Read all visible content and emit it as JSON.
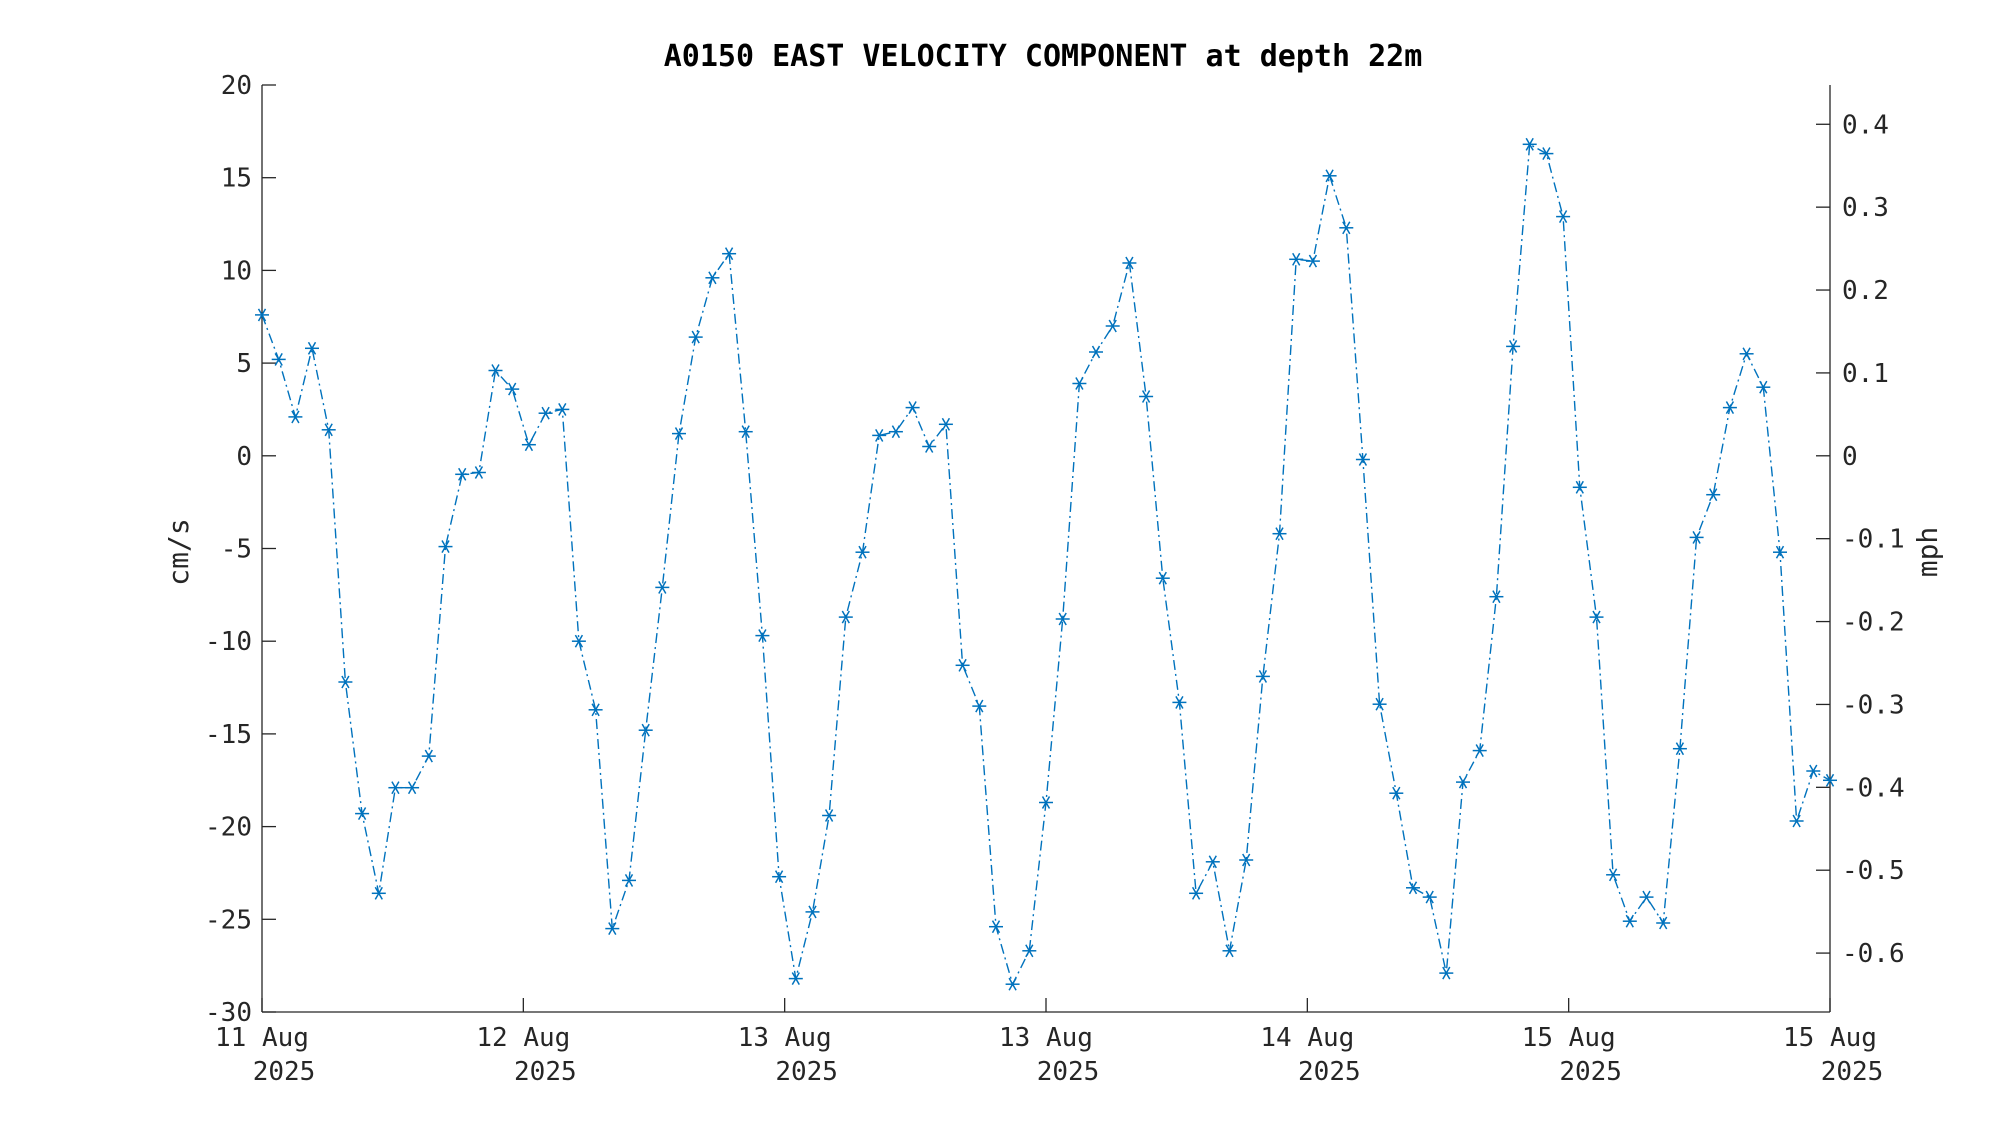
{
  "chart_data": {
    "type": "line",
    "title": "A0150 EAST VELOCITY COMPONENT at depth 22m",
    "ylabel": "cm/s",
    "ylabel_right": "mph",
    "ylim": [
      -30,
      20
    ],
    "y_ticks": [
      20,
      15,
      10,
      5,
      0,
      -5,
      -10,
      -15,
      -20,
      -25,
      -30
    ],
    "y_right_ticks": [
      0.4,
      0.3,
      0.2,
      0.1,
      0,
      -0.1,
      -0.2,
      -0.3,
      -0.4,
      -0.5,
      -0.6
    ],
    "x_tick_labels": [
      {
        "day": "11 Aug",
        "year": "2025"
      },
      {
        "day": "12 Aug",
        "year": "2025"
      },
      {
        "day": "13 Aug",
        "year": "2025"
      },
      {
        "day": "13 Aug",
        "year": "2025"
      },
      {
        "day": "14 Aug",
        "year": "2025"
      },
      {
        "day": "15 Aug",
        "year": "2025"
      },
      {
        "day": "15 Aug",
        "year": "2025"
      }
    ],
    "grid": false,
    "line_style": "dash-dot",
    "marker": "asterisk",
    "color": "#0072BD",
    "series": [
      {
        "values": [
          7.6,
          5.2,
          2.1,
          5.8,
          1.4,
          -12.2,
          -19.3,
          -23.6,
          -17.9,
          -17.9,
          -16.2,
          -4.9,
          -1.0,
          -0.9,
          4.6,
          3.6,
          0.6,
          2.3,
          2.5,
          -10.0,
          -13.7,
          -25.5,
          -22.9,
          -14.8,
          -7.1,
          1.2,
          6.4,
          9.6,
          10.9,
          1.3,
          -9.7,
          -22.7,
          -28.2,
          -24.6,
          -19.4,
          -8.7,
          -5.2,
          1.1,
          1.3,
          2.6,
          0.5,
          1.7,
          -11.3,
          -13.5,
          -25.4,
          -28.5,
          -26.7,
          -18.7,
          -8.8,
          3.9,
          5.6,
          7.0,
          10.4,
          3.2,
          -6.6,
          -13.3,
          -23.6,
          -21.9,
          -26.7,
          -21.8,
          -11.9,
          -4.2,
          10.6,
          10.5,
          15.1,
          12.3,
          -0.2,
          -13.4,
          -18.2,
          -23.3,
          -23.8,
          -27.9,
          -17.6,
          -15.9,
          -7.6,
          5.9,
          16.8,
          16.3,
          12.9,
          -1.7,
          -8.7,
          -22.6,
          -25.1,
          -23.8,
          -25.2,
          -15.8,
          -4.4,
          -2.1,
          2.6,
          5.5,
          3.7,
          -5.2,
          -19.7,
          -17.0,
          -17.5
        ]
      }
    ]
  }
}
